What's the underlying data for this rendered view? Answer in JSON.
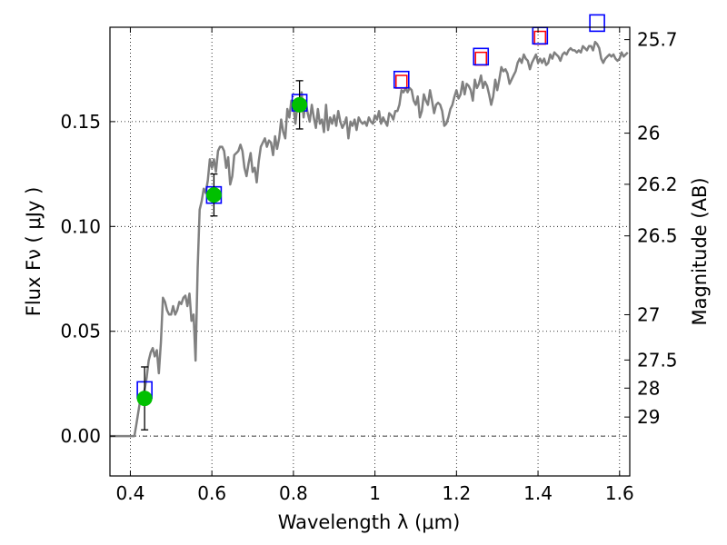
{
  "chart_data": {
    "type": "line",
    "xlabel": "Wavelength  λ (μm)",
    "ylabel": "Flux  Fν  ( μJy )",
    "y2label": "Magnitude (AB)",
    "xlim": [
      0.35,
      1.625
    ],
    "ylim": [
      -0.019,
      0.195
    ],
    "grid": true,
    "x_ticks": [
      {
        "value": 0.4,
        "label": "0.4"
      },
      {
        "value": 0.6,
        "label": "0.6"
      },
      {
        "value": 0.8,
        "label": "0.8"
      },
      {
        "value": 1.0,
        "label": "1"
      },
      {
        "value": 1.2,
        "label": "1.2"
      },
      {
        "value": 1.4,
        "label": "1.4"
      },
      {
        "value": 1.6,
        "label": "1.6"
      }
    ],
    "y_ticks": [
      {
        "value": 0.0,
        "label": "0.00"
      },
      {
        "value": 0.05,
        "label": "0.05"
      },
      {
        "value": 0.1,
        "label": "0.10"
      },
      {
        "value": 0.15,
        "label": "0.15"
      }
    ],
    "mag_ticks": [
      {
        "value": 0.1891,
        "label": "25.7"
      },
      {
        "value": 0.1445,
        "label": "26"
      },
      {
        "value": 0.1201,
        "label": "26.2"
      },
      {
        "value": 0.0955,
        "label": "26.5"
      },
      {
        "value": 0.0579,
        "label": "27"
      },
      {
        "value": 0.0363,
        "label": "27.5"
      },
      {
        "value": 0.0229,
        "label": "28"
      },
      {
        "value": 0.0091,
        "label": "29"
      }
    ],
    "series": [
      {
        "kind": "model-spectrum",
        "color": "#808080",
        "x": [
          0.35,
          0.38,
          0.41,
          0.415,
          0.42,
          0.425,
          0.43,
          0.435,
          0.44,
          0.445,
          0.45,
          0.455,
          0.46,
          0.465,
          0.47,
          0.475,
          0.48,
          0.485,
          0.49,
          0.495,
          0.5,
          0.505,
          0.51,
          0.515,
          0.52,
          0.525,
          0.53,
          0.535,
          0.54,
          0.545,
          0.55,
          0.555,
          0.56,
          0.565,
          0.57,
          0.575,
          0.58,
          0.585,
          0.59,
          0.595,
          0.6,
          0.605,
          0.61,
          0.615,
          0.62,
          0.625,
          0.63,
          0.635,
          0.64,
          0.645,
          0.65,
          0.655,
          0.66,
          0.665,
          0.67,
          0.675,
          0.68,
          0.685,
          0.69,
          0.695,
          0.7,
          0.705,
          0.71,
          0.715,
          0.72,
          0.725,
          0.73,
          0.735,
          0.74,
          0.745,
          0.75,
          0.755,
          0.76,
          0.765,
          0.77,
          0.775,
          0.78,
          0.785,
          0.79,
          0.795,
          0.8,
          0.805,
          0.81,
          0.815,
          0.82,
          0.825,
          0.83,
          0.835,
          0.84,
          0.845,
          0.85,
          0.855,
          0.86,
          0.865,
          0.87,
          0.875,
          0.88,
          0.885,
          0.89,
          0.895,
          0.9,
          0.905,
          0.91,
          0.915,
          0.92,
          0.925,
          0.93,
          0.935,
          0.94,
          0.945,
          0.95,
          0.955,
          0.96,
          0.965,
          0.97,
          0.975,
          0.98,
          0.985,
          0.99,
          0.995,
          1.0,
          1.005,
          1.01,
          1.015,
          1.02,
          1.025,
          1.03,
          1.035,
          1.04,
          1.045,
          1.05,
          1.055,
          1.06,
          1.065,
          1.07,
          1.075,
          1.08,
          1.085,
          1.09,
          1.095,
          1.1,
          1.105,
          1.11,
          1.115,
          1.12,
          1.125,
          1.13,
          1.135,
          1.14,
          1.145,
          1.15,
          1.155,
          1.16,
          1.165,
          1.17,
          1.175,
          1.18,
          1.185,
          1.19,
          1.195,
          1.2,
          1.205,
          1.21,
          1.215,
          1.22,
          1.225,
          1.23,
          1.235,
          1.24,
          1.245,
          1.25,
          1.255,
          1.26,
          1.265,
          1.27,
          1.275,
          1.28,
          1.285,
          1.29,
          1.295,
          1.3,
          1.305,
          1.31,
          1.315,
          1.32,
          1.325,
          1.33,
          1.335,
          1.34,
          1.345,
          1.35,
          1.355,
          1.36,
          1.365,
          1.37,
          1.375,
          1.38,
          1.385,
          1.39,
          1.395,
          1.4,
          1.405,
          1.41,
          1.415,
          1.42,
          1.425,
          1.43,
          1.435,
          1.44,
          1.445,
          1.45,
          1.455,
          1.46,
          1.465,
          1.47,
          1.475,
          1.48,
          1.485,
          1.49,
          1.495,
          1.5,
          1.505,
          1.51,
          1.515,
          1.52,
          1.525,
          1.53,
          1.535,
          1.54,
          1.545,
          1.55,
          1.555,
          1.56,
          1.565,
          1.57,
          1.575,
          1.58,
          1.585,
          1.59,
          1.595,
          1.6,
          1.605,
          1.61,
          1.615,
          1.62
        ],
        "y": [
          0.0,
          0.0,
          0.0,
          0.006,
          0.012,
          0.018,
          0.02,
          0.022,
          0.028,
          0.036,
          0.04,
          0.042,
          0.038,
          0.041,
          0.03,
          0.045,
          0.066,
          0.064,
          0.06,
          0.058,
          0.058,
          0.062,
          0.058,
          0.06,
          0.064,
          0.063,
          0.066,
          0.067,
          0.062,
          0.068,
          0.055,
          0.058,
          0.036,
          0.08,
          0.108,
          0.112,
          0.118,
          0.116,
          0.122,
          0.132,
          0.128,
          0.132,
          0.126,
          0.136,
          0.138,
          0.138,
          0.136,
          0.128,
          0.133,
          0.12,
          0.124,
          0.134,
          0.135,
          0.136,
          0.139,
          0.136,
          0.128,
          0.124,
          0.13,
          0.135,
          0.126,
          0.128,
          0.121,
          0.131,
          0.138,
          0.14,
          0.142,
          0.138,
          0.141,
          0.14,
          0.134,
          0.143,
          0.137,
          0.142,
          0.151,
          0.145,
          0.142,
          0.156,
          0.152,
          0.16,
          0.157,
          0.149,
          0.159,
          0.155,
          0.164,
          0.152,
          0.16,
          0.154,
          0.15,
          0.158,
          0.152,
          0.147,
          0.156,
          0.149,
          0.151,
          0.145,
          0.158,
          0.146,
          0.152,
          0.149,
          0.153,
          0.148,
          0.155,
          0.15,
          0.147,
          0.149,
          0.152,
          0.142,
          0.15,
          0.148,
          0.151,
          0.146,
          0.152,
          0.15,
          0.149,
          0.15,
          0.148,
          0.152,
          0.15,
          0.149,
          0.153,
          0.151,
          0.155,
          0.149,
          0.152,
          0.15,
          0.148,
          0.154,
          0.153,
          0.151,
          0.155,
          0.155,
          0.158,
          0.165,
          0.164,
          0.166,
          0.164,
          0.166,
          0.165,
          0.16,
          0.158,
          0.162,
          0.152,
          0.155,
          0.163,
          0.16,
          0.158,
          0.165,
          0.16,
          0.154,
          0.158,
          0.159,
          0.158,
          0.155,
          0.148,
          0.149,
          0.152,
          0.156,
          0.158,
          0.162,
          0.165,
          0.161,
          0.163,
          0.169,
          0.163,
          0.168,
          0.167,
          0.165,
          0.16,
          0.17,
          0.166,
          0.168,
          0.172,
          0.166,
          0.169,
          0.167,
          0.163,
          0.158,
          0.162,
          0.17,
          0.165,
          0.17,
          0.176,
          0.174,
          0.175,
          0.173,
          0.168,
          0.17,
          0.172,
          0.174,
          0.178,
          0.18,
          0.178,
          0.182,
          0.18,
          0.179,
          0.175,
          0.178,
          0.18,
          0.182,
          0.178,
          0.18,
          0.178,
          0.18,
          0.177,
          0.178,
          0.182,
          0.18,
          0.183,
          0.182,
          0.181,
          0.179,
          0.182,
          0.183,
          0.182,
          0.184,
          0.185,
          0.184,
          0.184,
          0.183,
          0.184,
          0.183,
          0.186,
          0.185,
          0.184,
          0.186,
          0.186,
          0.184,
          0.188,
          0.187,
          0.185,
          0.18,
          0.178,
          0.18,
          0.181,
          0.182,
          0.181,
          0.182,
          0.18,
          0.179,
          0.18,
          0.183,
          0.181,
          0.182,
          0.183
        ]
      },
      {
        "kind": "model-photometry",
        "marker": "square",
        "color": "#ff0000",
        "x": [
          1.065,
          1.26,
          1.405
        ],
        "y": [
          0.169,
          0.18,
          0.19
        ]
      },
      {
        "kind": "filter-photometry",
        "marker": "square",
        "color": "#0000ff",
        "x": [
          0.435,
          0.605,
          0.815,
          1.065,
          1.26,
          1.405,
          1.545
        ],
        "y": [
          0.022,
          0.115,
          0.159,
          0.17,
          0.181,
          0.191,
          0.197
        ]
      },
      {
        "kind": "observed",
        "marker": "circle",
        "color": "#00c000",
        "x": [
          0.435,
          0.605,
          0.815
        ],
        "y": [
          0.018,
          0.115,
          0.158
        ],
        "yerr": [
          0.015,
          0.01,
          0.0115
        ]
      }
    ]
  }
}
